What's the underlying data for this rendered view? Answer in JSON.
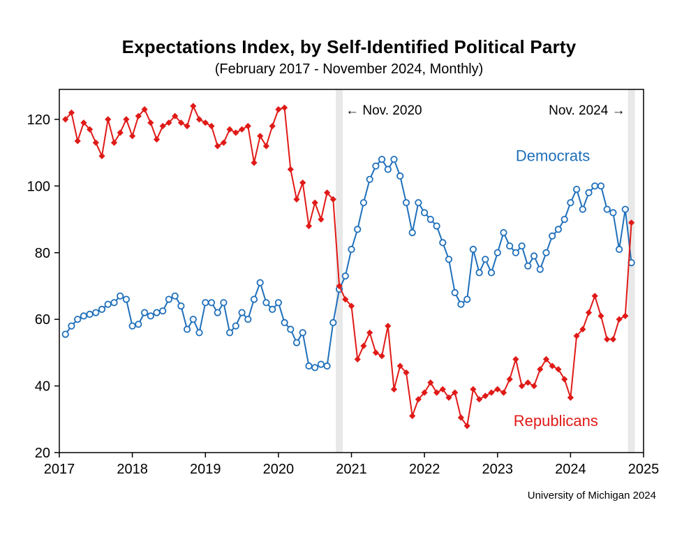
{
  "chart_data": {
    "type": "line",
    "title": "Expectations Index, by Self-Identified Political Party",
    "subtitle": "(February 2017 - November 2024, Monthly)",
    "source": "University of Michigan 2024",
    "x_start": {
      "year": 2017,
      "month": 2
    },
    "x_range": [
      2017,
      2025
    ],
    "x_ticks": [
      "2017",
      "2018",
      "2019",
      "2020",
      "2021",
      "2022",
      "2023",
      "2024",
      "2025"
    ],
    "y_range": [
      20,
      129
    ],
    "y_ticks": [
      20,
      40,
      60,
      80,
      100,
      120
    ],
    "grid": false,
    "legend_position": "inline-labels",
    "frame_color": "#000000",
    "event_bands": [
      {
        "label": "Nov. 2020",
        "x": 2020.8333,
        "color": "#e8e8e8"
      },
      {
        "label": "Nov. 2024",
        "x": 2024.8333,
        "color": "#e8e8e8"
      }
    ],
    "annotations": [
      {
        "text": "← Nov. 2020",
        "x": 2020.8333,
        "dx": 9,
        "y": 121.5,
        "anchor": "start"
      },
      {
        "text": "Nov. 2024 →",
        "x": 2024.8333,
        "dx": -9,
        "y": 121.5,
        "anchor": "end"
      }
    ],
    "series": [
      {
        "name": "Democrats",
        "color": "#1e6fba",
        "marker": "circle",
        "label": {
          "x": 2023.25,
          "y": 107.5
        },
        "values": [
          55.5,
          58,
          60,
          61,
          61.5,
          62,
          63,
          64.5,
          65,
          67,
          66,
          58,
          58.5,
          62,
          61,
          62,
          62.5,
          66,
          67,
          64,
          57,
          60,
          56,
          65,
          65,
          62,
          65,
          56,
          58,
          62,
          60,
          66,
          71,
          65,
          63,
          65,
          59,
          57,
          53,
          56,
          46,
          45.5,
          46.5,
          46,
          59,
          69,
          73,
          81,
          87,
          95,
          102,
          106,
          108,
          105,
          108,
          103,
          95,
          86,
          95,
          92,
          90,
          88,
          83,
          78,
          68,
          64.5,
          66,
          81,
          74,
          78,
          74,
          80,
          86,
          82,
          80,
          82,
          76,
          79,
          75,
          80,
          85,
          87,
          90,
          95,
          99,
          93,
          98,
          100,
          100,
          93,
          92,
          81,
          93,
          77
        ]
      },
      {
        "name": "Republicans",
        "color": "#e01a17",
        "marker": "diamond",
        "label": {
          "x": 2023.22,
          "y": 28
        },
        "values": [
          120,
          122,
          113.5,
          119,
          117,
          113,
          109,
          120,
          113,
          116,
          120,
          115,
          121,
          123,
          119,
          114,
          118,
          119,
          121,
          119,
          118,
          124,
          120,
          119,
          118,
          112,
          113,
          117,
          116,
          117,
          118,
          107,
          115,
          112,
          118,
          123,
          123.5,
          105,
          96,
          101,
          88,
          95,
          90,
          98,
          96,
          70,
          66,
          64,
          48,
          52,
          56,
          50,
          49,
          58,
          39,
          46,
          44,
          31,
          36,
          38,
          41,
          38,
          39,
          36.5,
          38,
          30.5,
          28,
          39,
          36,
          37,
          38,
          39,
          38,
          42,
          48,
          40,
          41,
          40,
          45,
          48,
          46,
          45,
          42,
          36.5,
          55,
          57,
          62,
          67,
          61,
          54,
          54,
          60,
          61,
          89
        ]
      }
    ]
  }
}
